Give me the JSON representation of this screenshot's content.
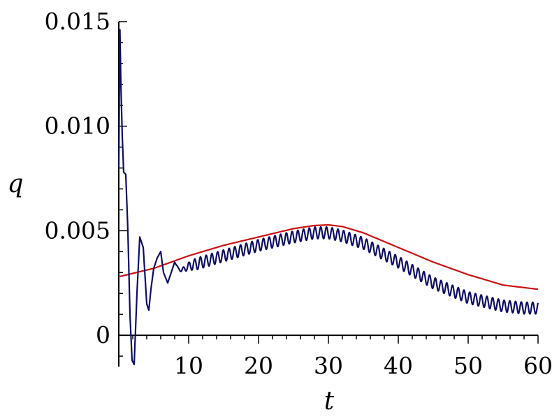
{
  "chart_data": {
    "type": "line",
    "title": "",
    "xlabel": "t",
    "ylabel": "q",
    "xlim": [
      0,
      60
    ],
    "ylim": [
      -0.0015,
      0.015
    ],
    "x_ticks": [
      10,
      20,
      30,
      40,
      50,
      60
    ],
    "x_tick_labels": [
      "10",
      "20",
      "30",
      "40",
      "50",
      "60"
    ],
    "y_ticks": [
      0,
      0.005,
      0.01,
      0.015
    ],
    "y_tick_labels": [
      "0",
      "0.005",
      "0.010",
      "0.015"
    ],
    "grid": false,
    "legend": "none",
    "series": [
      {
        "color": "#cc1111",
        "x": [
          0,
          5,
          10,
          15,
          20,
          25,
          28,
          30,
          32,
          35,
          40,
          45,
          50,
          55,
          60
        ],
        "y": [
          0.0028,
          0.0032,
          0.0038,
          0.0043,
          0.0047,
          0.0051,
          0.00525,
          0.00528,
          0.0052,
          0.0049,
          0.0042,
          0.0035,
          0.0029,
          0.0024,
          0.0022
        ]
      },
      {
        "color": "#0d0d66",
        "x": [
          0,
          0.15,
          0.3,
          0.5,
          0.7,
          1.0,
          1.3,
          1.6,
          1.9,
          2.2,
          2.6,
          3.0,
          3.5,
          4.0,
          4.3,
          4.6,
          5.0,
          5.5,
          6.0,
          6.4,
          7.0,
          7.5,
          8.0,
          8.5,
          9.0,
          10,
          12,
          15,
          20,
          25,
          28,
          30,
          32,
          35,
          40,
          45,
          50,
          55,
          58,
          60
        ],
        "y": [
          0.008,
          0.0148,
          0.012,
          0.0095,
          0.0078,
          0.0077,
          0.005,
          0.001,
          -0.0012,
          -0.0014,
          0.002,
          0.0047,
          0.0042,
          0.0015,
          0.0012,
          0.0022,
          0.0032,
          0.0037,
          0.004,
          0.003,
          0.0025,
          0.003,
          0.0035,
          0.0032,
          0.0031,
          0.0033,
          0.0035,
          0.0038,
          0.0043,
          0.0047,
          0.0049,
          0.0049,
          0.00475,
          0.0044,
          0.0035,
          0.0025,
          0.0018,
          0.0014,
          0.0013,
          0.0013
        ],
        "oscillation_amplitude": 0.00028,
        "oscillation_period": 0.82
      }
    ]
  }
}
